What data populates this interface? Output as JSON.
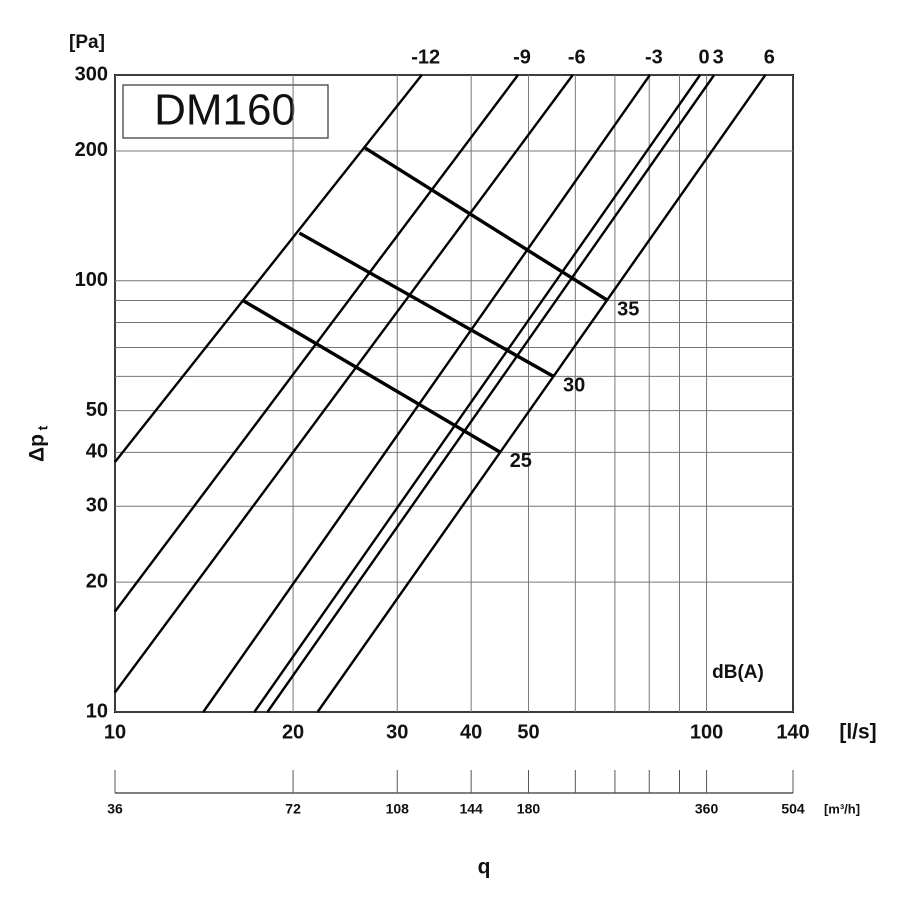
{
  "chart_data": {
    "type": "line",
    "title": "DM160",
    "x_label": "q",
    "x_unit": "[l/s]",
    "x2_unit": "[m³/h]",
    "y_label": "Δp",
    "y_label_sub": "t",
    "y_unit": "[Pa]",
    "annotation": "dB(A)",
    "xscale": "log",
    "yscale": "log",
    "xlim": [
      10,
      140
    ],
    "ylim": [
      10,
      300
    ],
    "xticks": [
      10,
      20,
      30,
      40,
      50,
      100,
      140
    ],
    "xgrid_minor": [
      60,
      70,
      80,
      90
    ],
    "yticks": [
      10,
      20,
      30,
      40,
      50,
      100,
      200,
      300
    ],
    "ygrid_minor": [
      60,
      70,
      80,
      90
    ],
    "x2lim": [
      36,
      504
    ],
    "x2ticks": [
      36,
      72,
      108,
      144,
      180,
      360,
      504
    ],
    "x2ticks_minor": [
      216,
      252,
      288,
      324
    ],
    "grid": true,
    "color": "#000000",
    "series": [
      {
        "name": "-12",
        "x": [
          10,
          33.0
        ],
        "values": [
          38.0,
          300
        ]
      },
      {
        "name": "-9",
        "x": [
          10,
          48.0
        ],
        "values": [
          17.1,
          300
        ]
      },
      {
        "name": "-6",
        "x": [
          10,
          59.4
        ],
        "values": [
          11.1,
          300
        ]
      },
      {
        "name": "-3",
        "x": [
          14.1,
          80.2
        ],
        "values": [
          10,
          300
        ]
      },
      {
        "name": "0",
        "x": [
          17.2,
          97.5
        ],
        "values": [
          10,
          300
        ]
      },
      {
        "name": "3",
        "x": [
          18.1,
          103
        ],
        "values": [
          10,
          300
        ]
      },
      {
        "name": "6",
        "x": [
          22.0,
          125.7
        ],
        "values": [
          10,
          300
        ]
      }
    ],
    "db_series": [
      {
        "name": "35",
        "x": [
          26.5,
          67.9
        ],
        "values": [
          203,
          90.2
        ]
      },
      {
        "name": "30",
        "x": [
          20.5,
          55.0
        ],
        "values": [
          129,
          60.1
        ]
      },
      {
        "name": "25",
        "x": [
          16.5,
          44.7
        ],
        "values": [
          89.8,
          40.1
        ]
      }
    ]
  }
}
